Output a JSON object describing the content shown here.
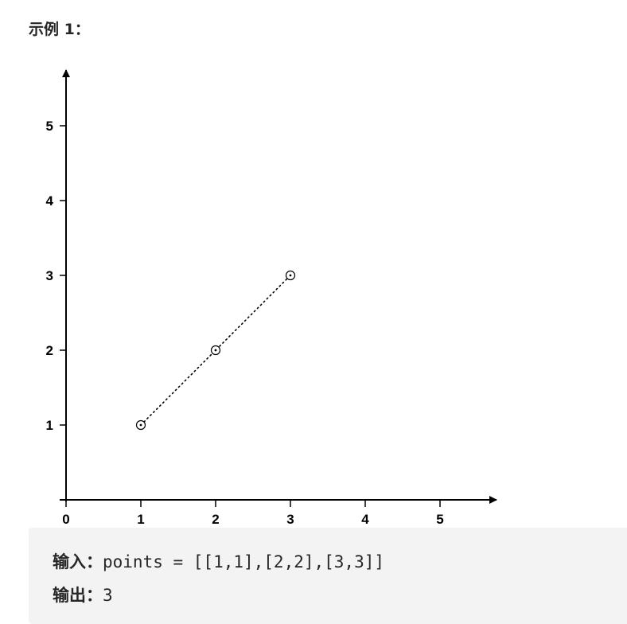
{
  "example": {
    "heading": "示例 1："
  },
  "chart_data": {
    "type": "scatter",
    "title": "",
    "xlabel": "",
    "ylabel": "",
    "xlim": [
      0,
      5.5
    ],
    "ylim": [
      0,
      5.6
    ],
    "x_ticks": [
      "0",
      "1",
      "2",
      "3",
      "4",
      "5"
    ],
    "y_ticks": [
      "1",
      "2",
      "3",
      "4",
      "5"
    ],
    "points": [
      {
        "x": 1,
        "y": 1
      },
      {
        "x": 2,
        "y": 2
      },
      {
        "x": 3,
        "y": 3
      }
    ],
    "line": {
      "style": "dotted",
      "through": [
        [
          1,
          1
        ],
        [
          3,
          3
        ]
      ]
    },
    "grid": false,
    "colors": {
      "axis": "#000000",
      "marker": "#000000"
    }
  },
  "io": {
    "input_label": "输入：",
    "input_value": "points = [[1,1],[2,2],[3,3]]",
    "output_label": "输出：",
    "output_value": "3"
  },
  "colors": {
    "code_bg": "#f3f3f3",
    "text": "#262626"
  }
}
